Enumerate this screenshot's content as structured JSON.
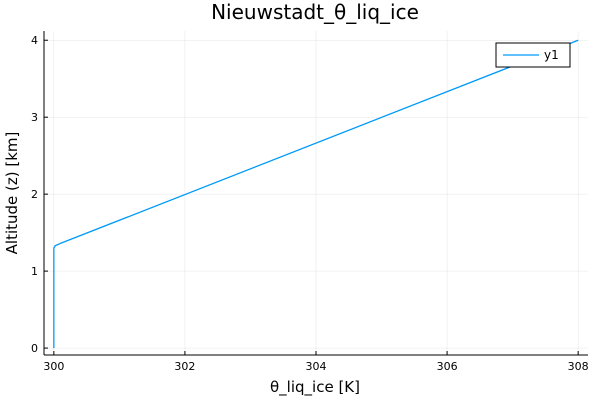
{
  "chart_data": {
    "type": "line",
    "title": "Nieuwstadt_θ_liq_ice",
    "xlabel": "θ_liq_ice [K]",
    "ylabel": "Altitude (z) [km]",
    "xlim": [
      299.85,
      308.15
    ],
    "ylim": [
      -0.09,
      4.12
    ],
    "xticks": [
      300,
      302,
      304,
      306,
      308
    ],
    "yticks": [
      0,
      1,
      2,
      3,
      4
    ],
    "grid": true,
    "legend_position": "top-right",
    "series": [
      {
        "name": "y1",
        "color": "#009AFA",
        "x": [
          300.0,
          300.0,
          300.0,
          300.02,
          300.1,
          308.0
        ],
        "y": [
          0.0,
          1.0,
          1.3,
          1.33,
          1.36,
          4.0
        ]
      }
    ]
  }
}
